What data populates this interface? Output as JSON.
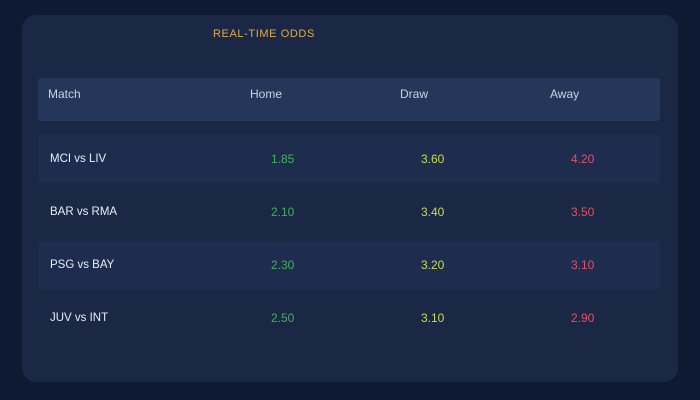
{
  "title": "REAL-TIME ODDS",
  "colors": {
    "page_bg": "#0d1a31",
    "card_bg": "#1a2845",
    "header_bg": "#24365a",
    "row_alt_bg": "#1e2d4e",
    "accent_gold": "#e2ab43",
    "header_text": "#c7d2e3",
    "match_text": "#e8edf4",
    "home_odds": "#41b05a",
    "draw_odds": "#ccd94f",
    "away_odds": "#e25066"
  },
  "table": {
    "columns": [
      "Match",
      "Home",
      "Draw",
      "Away"
    ],
    "rows": [
      {
        "match": "MCI vs LIV",
        "home": "1.85",
        "draw": "3.60",
        "away": "4.20"
      },
      {
        "match": "BAR vs RMA",
        "home": "2.10",
        "draw": "3.40",
        "away": "3.50"
      },
      {
        "match": "PSG vs BAY",
        "home": "2.30",
        "draw": "3.20",
        "away": "3.10"
      },
      {
        "match": "JUV vs INT",
        "home": "2.50",
        "draw": "3.10",
        "away": "2.90"
      }
    ]
  }
}
